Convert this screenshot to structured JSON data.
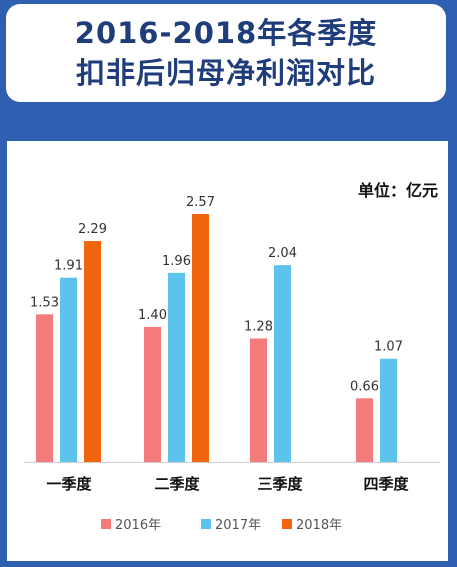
{
  "title": {
    "line1": "2016-2018年各季度",
    "line2": "扣非后归母净利润对比"
  },
  "unit": "单位：亿元",
  "chart_data": {
    "type": "bar",
    "categories": [
      "一季度",
      "二季度",
      "三季度",
      "四季度"
    ],
    "series": [
      {
        "name": "2016年",
        "color": "#f47a7b",
        "values": [
          1.53,
          1.4,
          1.28,
          0.66
        ]
      },
      {
        "name": "2017年",
        "color": "#5bc3ec",
        "values": [
          1.91,
          1.96,
          2.04,
          1.07
        ]
      },
      {
        "name": "2018年",
        "color": "#f2650f",
        "values": [
          2.29,
          2.57,
          null,
          null
        ]
      }
    ],
    "ylim": [
      0,
      2.57
    ],
    "grid": false,
    "legend": "bottom"
  }
}
